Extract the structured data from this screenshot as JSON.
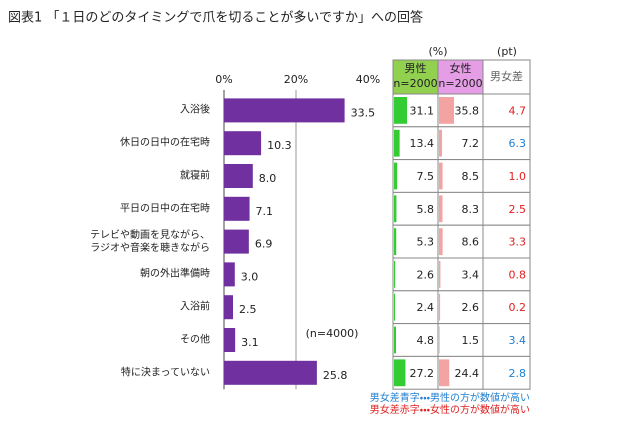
{
  "chart_data": {
    "type": "bar",
    "orientation": "horizontal",
    "title": "図表1 「１日のどのタイミングで爪を切ることが多いですか」への回答",
    "categories": [
      "入浴後",
      "休日の日中の在宅時",
      "就寝前",
      "平日の日中の在宅時",
      "テレビや動画を見ながら、\nラジオや音楽を聴きながら",
      "朝の外出準備時",
      "入浴前",
      "その他",
      "特に決まっていない"
    ],
    "values": [
      33.5,
      10.3,
      8.0,
      7.1,
      6.9,
      3.0,
      2.5,
      3.1,
      25.8
    ],
    "value_labels": [
      "33.5",
      "10.3",
      "8.0",
      "7.1",
      "6.9",
      "3.0",
      "2.5",
      "3.1",
      "25.8"
    ],
    "color": "#7030a0",
    "xlim": [
      0,
      40
    ],
    "xticks": [
      {
        "value": 0,
        "label": "0%"
      },
      {
        "value": 20,
        "label": "20%"
      },
      {
        "value": 40,
        "label": "40%"
      }
    ],
    "grid": true,
    "annotation": "(n=4000)"
  },
  "table": {
    "group_labels": [
      "(%)",
      "(pt)"
    ],
    "columns": [
      {
        "name": "男性",
        "sample": "n=2000",
        "header_color": "#92d050",
        "bar_color": "#33cc33",
        "values": [
          31.1,
          13.4,
          7.5,
          5.8,
          5.3,
          2.6,
          2.4,
          4.8,
          27.2
        ]
      },
      {
        "name": "女性",
        "sample": "n=2000",
        "header_color": "#e59ee5",
        "bar_color": "#f4a3a3",
        "values": [
          35.8,
          7.2,
          8.5,
          8.3,
          8.6,
          3.4,
          2.6,
          1.5,
          24.4
        ]
      },
      {
        "name": "男女差",
        "values": [
          4.7,
          6.3,
          1.0,
          2.5,
          3.3,
          0.8,
          0.2,
          3.4,
          2.8
        ],
        "value_labels": [
          "4.7",
          "6.3",
          "1.0",
          "2.5",
          "3.3",
          "0.8",
          "0.2",
          "3.4",
          "2.8"
        ],
        "colors": [
          "#e02020",
          "#1f7fd0",
          "#e02020",
          "#e02020",
          "#e02020",
          "#e02020",
          "#e02020",
          "#1f7fd0",
          "#1f7fd0"
        ]
      }
    ],
    "notes": [
      {
        "text": "男女差青字・・・男性の方が数値が高い",
        "color": "#1f7fd0"
      },
      {
        "text": "男女差赤字・・・女性の方が数値が高い",
        "color": "#e02020"
      }
    ]
  }
}
